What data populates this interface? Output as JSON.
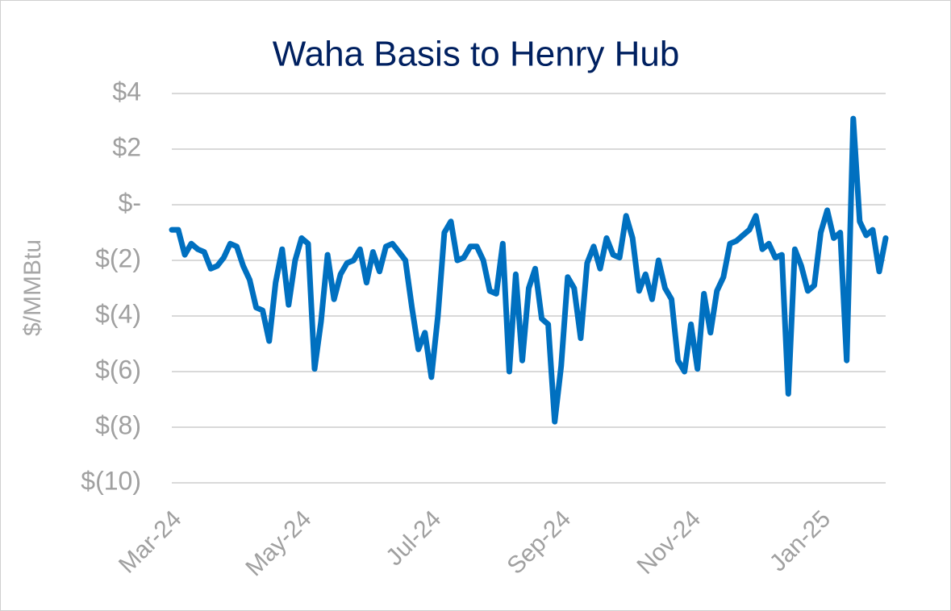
{
  "chart_data": {
    "type": "line",
    "title": "Waha Basis to Henry Hub",
    "y_label": "$/MMBtu",
    "categories": [
      "Mar-24",
      null,
      null,
      null,
      null,
      null,
      null,
      null,
      null,
      null,
      null,
      null,
      null,
      null,
      null,
      null,
      null,
      null,
      null,
      null,
      "May-24",
      null,
      null,
      null,
      null,
      null,
      null,
      null,
      null,
      null,
      null,
      null,
      null,
      null,
      null,
      null,
      null,
      null,
      null,
      null,
      "Jul-24",
      null,
      null,
      null,
      null,
      null,
      null,
      null,
      null,
      null,
      null,
      null,
      null,
      null,
      null,
      null,
      null,
      null,
      null,
      null,
      "Sep-24",
      null,
      null,
      null,
      null,
      null,
      null,
      null,
      null,
      null,
      null,
      null,
      null,
      null,
      null,
      null,
      null,
      null,
      null,
      null,
      "Nov-24",
      null,
      null,
      null,
      null,
      null,
      null,
      null,
      null,
      null,
      null,
      null,
      null,
      null,
      null,
      null,
      null,
      null,
      null,
      null,
      "Jan-25",
      null,
      null,
      null,
      null,
      null,
      null,
      null,
      null,
      null,
      null
    ],
    "values": [
      -0.9,
      -0.9,
      -1.8,
      -1.4,
      -1.6,
      -1.7,
      -2.3,
      -2.2,
      -1.9,
      -1.4,
      -1.5,
      -2.2,
      -2.7,
      -3.7,
      -3.8,
      -4.9,
      -2.8,
      -1.6,
      -3.6,
      -2.0,
      -1.2,
      -1.4,
      -5.9,
      -4.2,
      -1.8,
      -3.4,
      -2.5,
      -2.1,
      -2.0,
      -1.6,
      -2.8,
      -1.7,
      -2.4,
      -1.5,
      -1.4,
      -1.7,
      -2.0,
      -3.7,
      -5.2,
      -4.6,
      -6.2,
      -4.0,
      -1.0,
      -0.6,
      -2.0,
      -1.9,
      -1.5,
      -1.5,
      -2.0,
      -3.1,
      -3.2,
      -1.4,
      -6.0,
      -2.5,
      -5.6,
      -3.0,
      -2.3,
      -4.1,
      -4.3,
      -7.8,
      -5.8,
      -2.6,
      -3.0,
      -4.8,
      -2.1,
      -1.5,
      -2.3,
      -1.2,
      -1.8,
      -1.9,
      -0.4,
      -1.2,
      -3.1,
      -2.5,
      -3.4,
      -2.0,
      -3.0,
      -3.4,
      -5.6,
      -6.0,
      -4.3,
      -5.9,
      -3.2,
      -4.6,
      -3.1,
      -2.6,
      -1.4,
      -1.3,
      -1.1,
      -0.9,
      -0.4,
      -1.6,
      -1.4,
      -1.9,
      -1.8,
      -6.8,
      -1.6,
      -2.2,
      -3.1,
      -2.9,
      -1.0,
      -0.2,
      -1.2,
      -1.0,
      -5.6,
      3.1,
      -0.6,
      -1.1,
      -0.9,
      -2.4,
      -1.2
    ],
    "color": "#0070c0",
    "ylim": [
      -10,
      4
    ],
    "yticks": [
      {
        "value": -10,
        "label": "$(10)"
      },
      {
        "value": -8,
        "label": "$(8)"
      },
      {
        "value": -6,
        "label": "$(6)"
      },
      {
        "value": -4,
        "label": "$(4)"
      },
      {
        "value": -2,
        "label": "$(2)"
      },
      {
        "value": 0,
        "label": "$-"
      },
      {
        "value": 2,
        "label": "$2"
      },
      {
        "value": 4,
        "label": "$4"
      }
    ],
    "grid": true
  }
}
